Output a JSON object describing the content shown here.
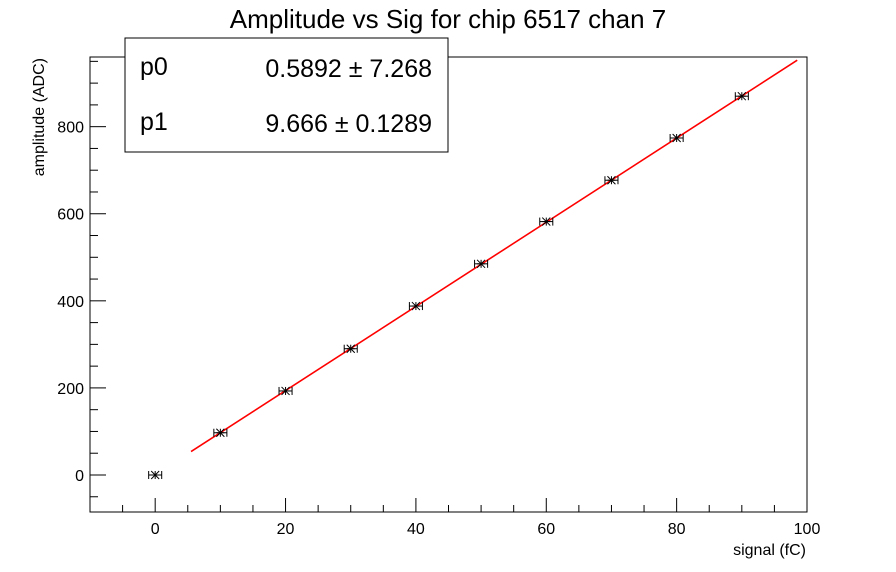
{
  "chart_data": {
    "type": "scatter",
    "title": "Amplitude vs Sig for chip 6517 chan 7",
    "xlabel": "signal (fC)",
    "ylabel": "amplitude (ADC)",
    "xlim": [
      -10,
      100
    ],
    "ylim": [
      -85,
      960
    ],
    "xticks": [
      0,
      20,
      40,
      60,
      80,
      100
    ],
    "yticks": [
      0,
      200,
      400,
      600,
      800
    ],
    "grid": false,
    "series": [
      {
        "marker": "star",
        "color": "#000000",
        "x": [
          0,
          10,
          20,
          30,
          40,
          50,
          60,
          70,
          80,
          90
        ],
        "y": [
          0,
          97,
          193,
          290,
          388,
          485,
          582,
          677,
          774,
          870
        ],
        "xerr": 1
      }
    ],
    "fit": {
      "color": "#ff0000",
      "x_start": 5.5,
      "x_end": 98.5,
      "intercept": 0.5892,
      "slope": 9.666
    },
    "stats_box": {
      "placement": "top-left",
      "rows": [
        {
          "name": "p0",
          "value": "0.5892 ± 7.268"
        },
        {
          "name": "p1",
          "value": "9.666 ± 0.1289"
        }
      ]
    }
  }
}
